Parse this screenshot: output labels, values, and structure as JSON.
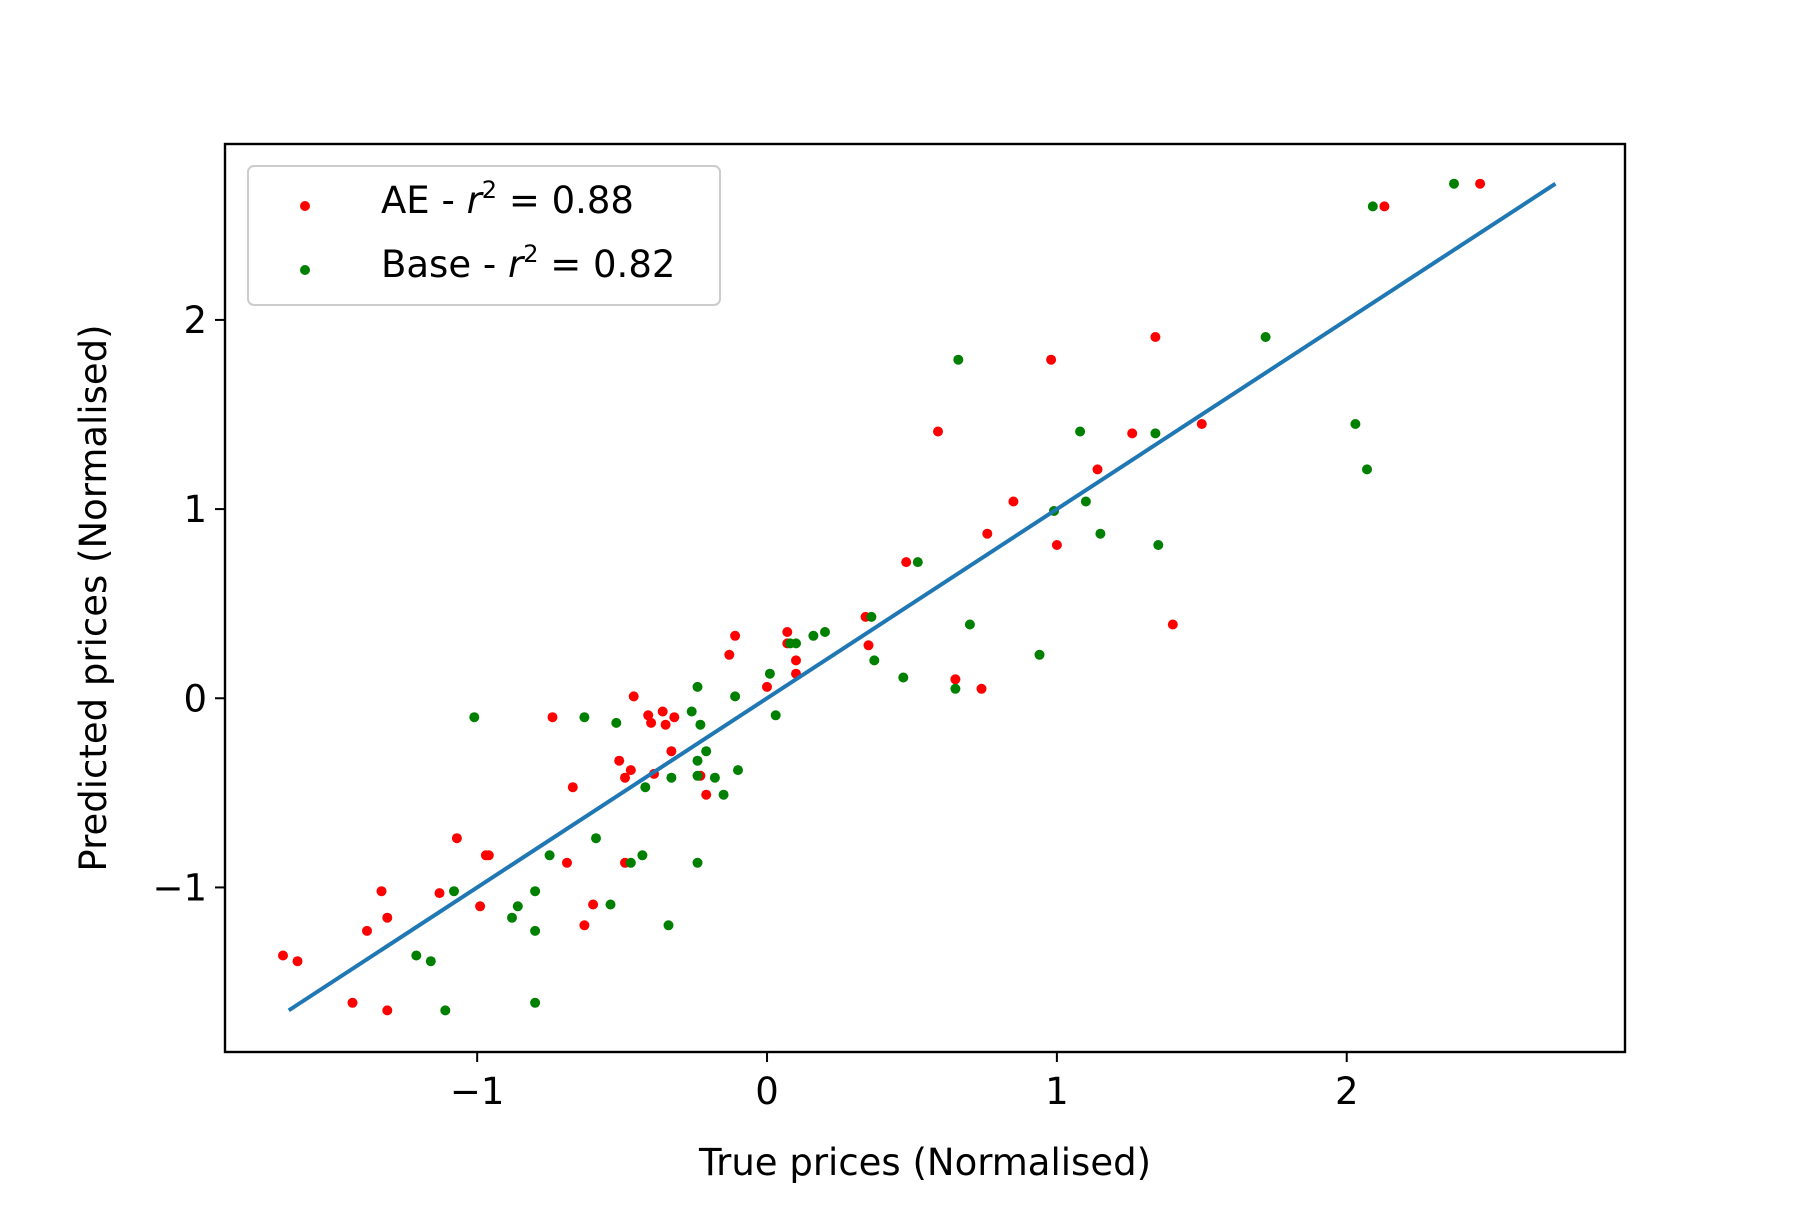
{
  "chart_data": {
    "type": "scatter",
    "title": "",
    "xlabel": "True prices (Normalised)",
    "ylabel": "Predicted prices (Normalised)",
    "xlim": [
      -1.87,
      2.96
    ],
    "ylim": [
      -1.87,
      2.93
    ],
    "xticks": [
      -1,
      0,
      1,
      2
    ],
    "yticks": [
      -1,
      0,
      1,
      2
    ],
    "xtick_labels": [
      "−1",
      "0",
      "1",
      "2"
    ],
    "ytick_labels": [
      "−1",
      "0",
      "1",
      "2"
    ],
    "grid": false,
    "legend_position": "top-left",
    "series": [
      {
        "name": "AE - r² = 0.88",
        "legend_prefix": "AE - ",
        "legend_r2": "0.88",
        "color": "#ff0000",
        "points": [
          [
            -1.67,
            -1.36
          ],
          [
            -1.62,
            -1.39
          ],
          [
            -1.43,
            -1.61
          ],
          [
            -1.38,
            -1.23
          ],
          [
            -1.33,
            -1.02
          ],
          [
            -1.31,
            -1.16
          ],
          [
            -1.31,
            -1.65
          ],
          [
            -1.13,
            -1.03
          ],
          [
            -1.07,
            -0.74
          ],
          [
            -0.99,
            -1.1
          ],
          [
            -0.97,
            -0.83
          ],
          [
            -0.96,
            -0.83
          ],
          [
            -0.74,
            -0.1
          ],
          [
            -0.69,
            -0.87
          ],
          [
            -0.67,
            -0.47
          ],
          [
            -0.63,
            -1.2
          ],
          [
            -0.6,
            -1.09
          ],
          [
            -0.51,
            -0.33
          ],
          [
            -0.49,
            -0.42
          ],
          [
            -0.49,
            -0.87
          ],
          [
            -0.47,
            -0.38
          ],
          [
            -0.46,
            0.01
          ],
          [
            -0.41,
            -0.09
          ],
          [
            -0.4,
            -0.13
          ],
          [
            -0.39,
            -0.4
          ],
          [
            -0.36,
            -0.07
          ],
          [
            -0.35,
            -0.14
          ],
          [
            -0.33,
            -0.28
          ],
          [
            -0.32,
            -0.1
          ],
          [
            -0.23,
            -0.41
          ],
          [
            -0.21,
            -0.51
          ],
          [
            -0.13,
            0.23
          ],
          [
            -0.11,
            0.33
          ],
          [
            0.0,
            0.06
          ],
          [
            0.07,
            0.35
          ],
          [
            0.07,
            0.29
          ],
          [
            0.1,
            0.2
          ],
          [
            0.1,
            0.13
          ],
          [
            0.34,
            0.43
          ],
          [
            0.35,
            0.28
          ],
          [
            0.48,
            0.72
          ],
          [
            0.59,
            1.41
          ],
          [
            0.65,
            0.1
          ],
          [
            0.74,
            0.05
          ],
          [
            0.76,
            0.87
          ],
          [
            0.85,
            1.04
          ],
          [
            0.98,
            1.79
          ],
          [
            1.0,
            0.81
          ],
          [
            1.14,
            1.21
          ],
          [
            1.26,
            1.4
          ],
          [
            1.34,
            1.91
          ],
          [
            1.4,
            0.39
          ],
          [
            1.5,
            1.45
          ],
          [
            2.13,
            2.6
          ],
          [
            2.46,
            2.72
          ]
        ]
      },
      {
        "name": "Base - r² = 0.82",
        "legend_prefix": "Base - ",
        "legend_r2": "0.82",
        "color": "#008000",
        "points": [
          [
            -1.21,
            -1.36
          ],
          [
            -1.16,
            -1.39
          ],
          [
            -1.11,
            -1.65
          ],
          [
            -1.08,
            -1.02
          ],
          [
            -1.01,
            -0.1
          ],
          [
            -0.88,
            -1.16
          ],
          [
            -0.86,
            -1.1
          ],
          [
            -0.8,
            -1.23
          ],
          [
            -0.8,
            -1.02
          ],
          [
            -0.8,
            -1.61
          ],
          [
            -0.75,
            -0.83
          ],
          [
            -0.63,
            -0.1
          ],
          [
            -0.59,
            -0.74
          ],
          [
            -0.54,
            -1.09
          ],
          [
            -0.52,
            -0.13
          ],
          [
            -0.47,
            -0.87
          ],
          [
            -0.43,
            -0.83
          ],
          [
            -0.42,
            -0.47
          ],
          [
            -0.34,
            -1.2
          ],
          [
            -0.33,
            -0.42
          ],
          [
            -0.26,
            -0.07
          ],
          [
            -0.24,
            0.06
          ],
          [
            -0.24,
            -0.33
          ],
          [
            -0.24,
            -0.41
          ],
          [
            -0.24,
            -0.87
          ],
          [
            -0.23,
            -0.14
          ],
          [
            -0.21,
            -0.28
          ],
          [
            -0.18,
            -0.42
          ],
          [
            -0.15,
            -0.51
          ],
          [
            -0.11,
            0.01
          ],
          [
            -0.1,
            -0.38
          ],
          [
            0.01,
            0.13
          ],
          [
            0.03,
            -0.09
          ],
          [
            0.08,
            0.29
          ],
          [
            0.1,
            0.29
          ],
          [
            0.16,
            0.33
          ],
          [
            0.2,
            0.35
          ],
          [
            0.36,
            0.43
          ],
          [
            0.37,
            0.2
          ],
          [
            0.47,
            0.11
          ],
          [
            0.52,
            0.72
          ],
          [
            0.65,
            0.05
          ],
          [
            0.66,
            1.79
          ],
          [
            0.7,
            0.39
          ],
          [
            0.94,
            0.23
          ],
          [
            0.99,
            0.99
          ],
          [
            1.08,
            1.41
          ],
          [
            1.1,
            1.04
          ],
          [
            1.15,
            0.87
          ],
          [
            1.34,
            1.4
          ],
          [
            1.35,
            0.81
          ],
          [
            1.72,
            1.91
          ],
          [
            2.03,
            1.45
          ],
          [
            2.07,
            1.21
          ],
          [
            2.09,
            2.6
          ],
          [
            2.37,
            2.72
          ]
        ]
      }
    ],
    "fit_line": {
      "color": "#1f77b4",
      "x": [
        -1.65,
        2.72
      ],
      "y": [
        -1.65,
        2.72
      ]
    }
  }
}
